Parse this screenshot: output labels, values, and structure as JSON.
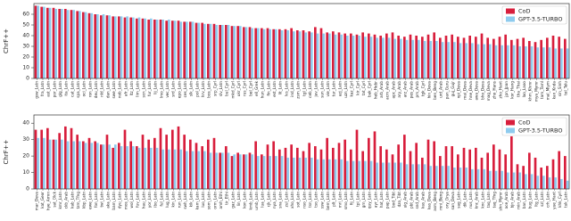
{
  "chart_data": [
    {
      "type": "bar",
      "y_label": "ChrF++",
      "legend": "upper right",
      "categories": [
        "gsw_Latn",
        "fra_Latn",
        "ast_Latn",
        "por_Latn",
        "glg_Latn",
        "ita_Latn",
        "cat_Latn",
        "spa_Latn",
        "oci_Latn",
        "ron_Latn",
        "deu_Latn",
        "nld_Latn",
        "dan_Latn",
        "swe_Latn",
        "nob_Latn",
        "afr_Latn",
        "ltz_Latn",
        "lim_Latn",
        "scn_Latn",
        "fur_Latn",
        "lij_Latn",
        "lmo_Latn",
        "vec_Latn",
        "srd_Latn",
        "epo_Latn",
        "ces_Latn",
        "slk_Latn",
        "pol_Latn",
        "hrv_Latn",
        "bos_Latn",
        "srp_Cyrl",
        "slv_Latn",
        "bul_Cyrl",
        "mkd_Cyrl",
        "ukr_Cyrl",
        "rus_Cyrl",
        "bel_Cyrl",
        "ell_Grek",
        "hun_Latn",
        "fin_Latn",
        "est_Latn",
        "lit_Latn",
        "lvs_Latn",
        "ind_Latn",
        "zsm_Latn",
        "tgl_Latn",
        "ceb_Latn",
        "jav_Latn",
        "sun_Latn",
        "vie_Latn",
        "tur_Latn",
        "azj_Latn",
        "uzn_Latn",
        "kaz_Cyrl",
        "kir_Cyrl",
        "tat_Cyrl",
        "bak_Cyrl",
        "heb_Hebr",
        "arb_Arab",
        "acm_Arab",
        "apc_Arab",
        "ary_Arab",
        "arz_Arab",
        "pes_Arab",
        "prs_Arab",
        "tgk_Cyrl",
        "hin_Deva",
        "ben_Beng",
        "urd_Arab",
        "pan_Guru",
        "guj_Gujr",
        "npi_Deva",
        "mai_Deva",
        "hne_Deva",
        "awa_Deva",
        "bho_Deva",
        "mag_Deva",
        "zho_Hans",
        "zho_Hant",
        "jpn_Jpan",
        "kor_Hang",
        "tha_Thai",
        "lao_Laoo",
        "khm_Khmr",
        "mya_Mymr",
        "tam_Taml",
        "mal_Mlym",
        "kan_Knda",
        "sin_Sinh",
        "tel_Telu"
      ],
      "series": [
        {
          "name": "CoD",
          "color": "#d81e3c",
          "values": [
            68,
            67,
            66,
            66,
            65,
            65,
            64,
            63,
            62,
            61,
            60,
            59,
            59,
            58,
            58,
            57,
            57,
            56,
            56,
            55,
            55,
            55,
            54,
            54,
            54,
            53,
            53,
            52,
            52,
            51,
            51,
            50,
            50,
            49,
            49,
            48,
            48,
            47,
            47,
            47,
            46,
            46,
            46,
            47,
            45,
            45,
            44,
            48,
            47,
            43,
            44,
            43,
            42,
            42,
            41,
            43,
            42,
            41,
            40,
            42,
            43,
            40,
            39,
            41,
            40,
            39,
            41,
            43,
            38,
            40,
            41,
            39,
            38,
            40,
            39,
            42,
            38,
            37,
            39,
            41,
            36,
            37,
            38,
            35,
            34,
            36,
            38,
            40,
            39,
            37
          ]
        },
        {
          "name": "GPT-3.5-TURBO",
          "color": "#8ecbee",
          "values": [
            68,
            67,
            66,
            65,
            65,
            64,
            64,
            63,
            62,
            61,
            60,
            60,
            59,
            58,
            58,
            58,
            57,
            57,
            56,
            56,
            55,
            55,
            55,
            54,
            53,
            53,
            53,
            52,
            51,
            51,
            50,
            50,
            50,
            49,
            49,
            48,
            47,
            47,
            46,
            46,
            46,
            45,
            45,
            44,
            44,
            43,
            43,
            42,
            42,
            42,
            41,
            41,
            40,
            40,
            40,
            39,
            39,
            38,
            38,
            38,
            37,
            37,
            36,
            36,
            36,
            35,
            35,
            35,
            34,
            34,
            34,
            33,
            33,
            33,
            32,
            32,
            32,
            31,
            31,
            31,
            31,
            30,
            30,
            30,
            29,
            29,
            29,
            28,
            28,
            28
          ]
        }
      ],
      "ylim": [
        0,
        70
      ],
      "yticks": [
        0,
        10,
        20,
        30,
        40,
        50,
        60
      ]
    },
    {
      "type": "bar",
      "y_label": "ChrF++",
      "legend": "upper right",
      "categories": [
        "mar_Deva",
        "kat_Geor",
        "hye_Armn",
        "sat_Olck",
        "kmr_Latn",
        "ckb_Arab",
        "kab_Latn",
        "tzm_Tfng",
        "kbp_Latn",
        "ewe_Latn",
        "fon_Latn",
        "twi_Latn",
        "aka_Latn",
        "bam_Latn",
        "dyu_Latn",
        "mos_Latn",
        "wol_Latn",
        "fuv_Latn",
        "hau_Latn",
        "yor_Latn",
        "ibo_Latn",
        "ful_Latn",
        "lug_Latn",
        "kin_Latn",
        "run_Latn",
        "swh_Latn",
        "kik_Latn",
        "kam_Latn",
        "luo_Latn",
        "som_Latn",
        "orm_Latn",
        "amh_Ethi",
        "tir_Ethi",
        "gaz_Latn",
        "lin_Latn",
        "kon_Latn",
        "kmb_Latn",
        "umb_Latn",
        "lua_Latn",
        "cjk_Latn",
        "nya_Latn",
        "sna_Latn",
        "zul_Latn",
        "xho_Latn",
        "sot_Latn",
        "nso_Latn",
        "tsn_Latn",
        "tso_Latn",
        "ssw_Latn",
        "bem_Latn",
        "plt_Latn",
        "mri_Latn",
        "smo_Latn",
        "fij_Latn",
        "tpi_Latn",
        "grn_Latn",
        "quy_Latn",
        "ayr_Latn",
        "hat_Latn",
        "pap_Latn",
        "bod_Tibt",
        "dzo_Tibt",
        "uig_Arab",
        "pbt_Arab",
        "snd_Arab",
        "kas_Arab",
        "kas_Deva",
        "asm_Beng",
        "mni_Beng",
        "ory_Orya",
        "san_Deva",
        "sag_Latn",
        "dik_Latn",
        "nus_Latn",
        "knc_Arab",
        "knc_Latn",
        "taq_Latn",
        "taq_Tfng",
        "shn_Mymr",
        "ace_Arab",
        "bjn_Arab",
        "min_Arab",
        "ban_Latn",
        "bug_Latn",
        "ltg_Latn",
        "szl_Latn",
        "crh_Latn",
        "yue_Hant",
        "khk_Cyrl",
        "tuk_Latn"
      ],
      "series": [
        {
          "name": "CoD",
          "color": "#d81e3c",
          "values": [
            36,
            36,
            37,
            30,
            34,
            38,
            37,
            33,
            29,
            31,
            29,
            27,
            33,
            25,
            28,
            36,
            29,
            26,
            33,
            30,
            31,
            37,
            33,
            36,
            38,
            33,
            30,
            28,
            26,
            30,
            31,
            22,
            26,
            20,
            22,
            21,
            22,
            29,
            21,
            27,
            29,
            24,
            25,
            27,
            25,
            23,
            28,
            26,
            24,
            31,
            25,
            28,
            30,
            24,
            36,
            23,
            31,
            35,
            26,
            24,
            21,
            27,
            33,
            23,
            28,
            19,
            30,
            29,
            20,
            26,
            26,
            21,
            25,
            24,
            25,
            19,
            22,
            27,
            24,
            21,
            32,
            15,
            14,
            22,
            19,
            13,
            14,
            18,
            23,
            20
          ]
        },
        {
          "name": "GPT-3.5-TURBO",
          "color": "#8ecbee",
          "values": [
            31,
            31,
            30,
            30,
            30,
            29,
            29,
            29,
            28,
            28,
            28,
            27,
            27,
            27,
            26,
            26,
            26,
            25,
            25,
            25,
            25,
            24,
            24,
            24,
            24,
            23,
            23,
            23,
            23,
            22,
            22,
            22,
            22,
            21,
            21,
            21,
            21,
            20,
            20,
            20,
            20,
            20,
            19,
            19,
            19,
            19,
            19,
            18,
            18,
            18,
            18,
            18,
            17,
            17,
            17,
            17,
            17,
            16,
            16,
            16,
            16,
            16,
            15,
            15,
            15,
            15,
            14,
            14,
            14,
            14,
            13,
            13,
            13,
            12,
            12,
            12,
            11,
            11,
            11,
            10,
            10,
            10,
            9,
            9,
            8,
            8,
            7,
            7,
            6,
            5
          ]
        }
      ],
      "ylim": [
        0,
        45
      ],
      "yticks": [
        0,
        10,
        20,
        30,
        40
      ]
    }
  ]
}
